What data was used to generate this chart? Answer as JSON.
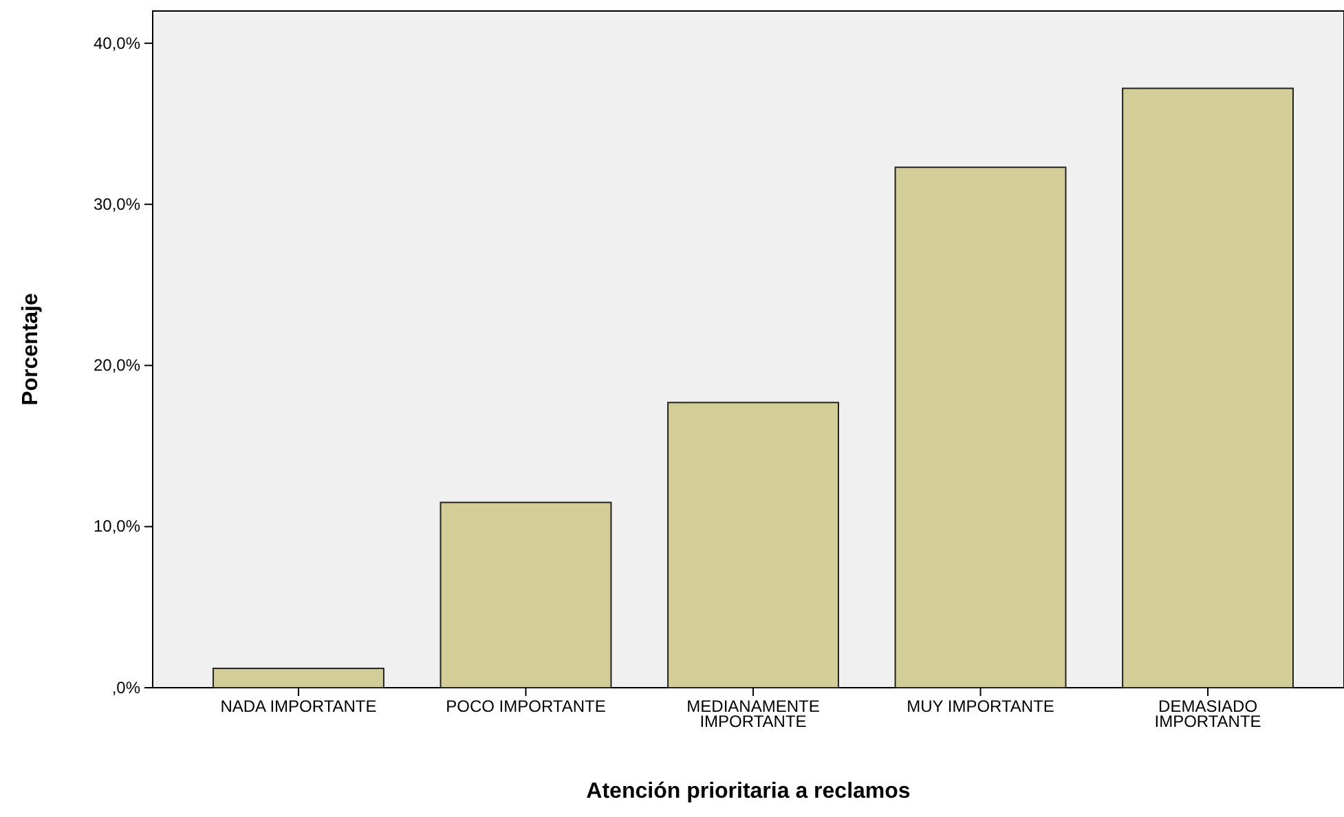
{
  "chart_data": {
    "type": "bar",
    "xlabel": "Atención prioritaria a reclamos",
    "ylabel": "Porcentaje",
    "categories": [
      "NADA IMPORTANTE",
      "POCO IMPORTANTE",
      "MEDIANAMENTE IMPORTANTE",
      "MUY IMPORTANTE",
      "DEMASIADO IMPORTANTE"
    ],
    "values": [
      1.2,
      11.5,
      17.7,
      32.3,
      37.2
    ],
    "color": "#d3ce97",
    "ylim": [
      0,
      42
    ],
    "yticks": [
      {
        "value": 0,
        "label": ",0%"
      },
      {
        "value": 10,
        "label": "10,0%"
      },
      {
        "value": 20,
        "label": "20,0%"
      },
      {
        "value": 30,
        "label": "30,0%"
      },
      {
        "value": 40,
        "label": "40,0%"
      }
    ]
  }
}
